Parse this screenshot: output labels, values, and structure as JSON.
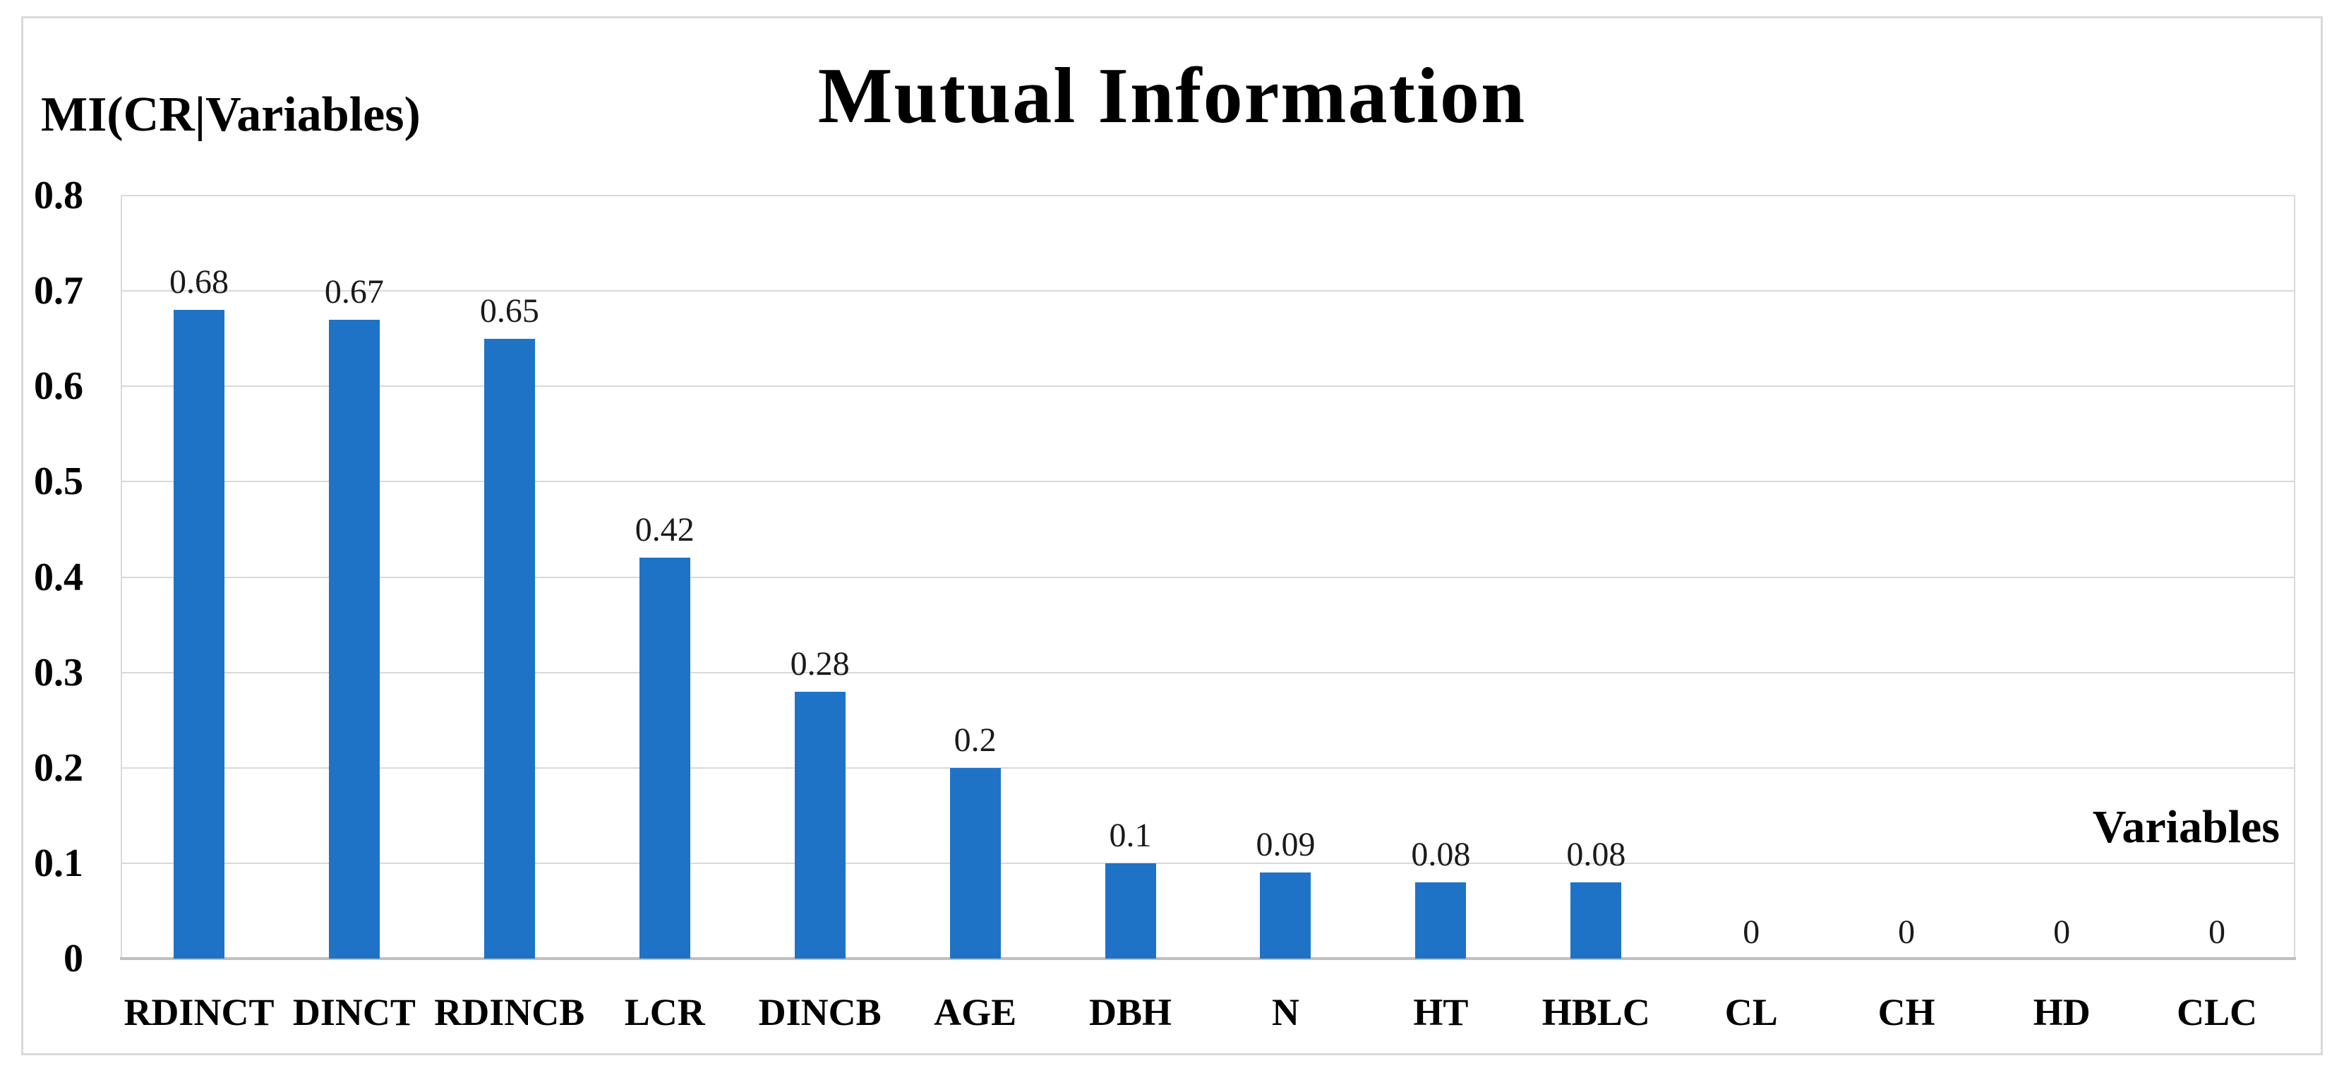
{
  "chart_data": {
    "type": "bar",
    "title": "Mutual Information",
    "y_axis_label": "MI(CR|Variables)",
    "x_axis_label": "Variables",
    "categories": [
      "RDINCT",
      "DINCT",
      "RDINCB",
      "LCR",
      "DINCB",
      "AGE",
      "DBH",
      "N",
      "HT",
      "HBLC",
      "CL",
      "CH",
      "HD",
      "CLC"
    ],
    "values": [
      0.68,
      0.67,
      0.65,
      0.42,
      0.28,
      0.2,
      0.1,
      0.09,
      0.08,
      0.08,
      0,
      0,
      0,
      0
    ],
    "value_labels": [
      "0.68",
      "0.67",
      "0.65",
      "0.42",
      "0.28",
      "0.2",
      "0.1",
      "0.09",
      "0.08",
      "0.08",
      "0",
      "0",
      "0",
      "0"
    ],
    "ylim": [
      0,
      0.8
    ],
    "ytick_step": 0.1,
    "ytick_labels": [
      "0",
      "0.1",
      "0.2",
      "0.3",
      "0.4",
      "0.5",
      "0.6",
      "0.7",
      "0.8"
    ],
    "grid": true,
    "legend": "none",
    "colors": {
      "bar": "#1e73c6",
      "gridline": "#d9d9d9",
      "axis_line": "#bfbfbf",
      "frame_border": "#d9d9d9",
      "text": "#000000"
    }
  }
}
